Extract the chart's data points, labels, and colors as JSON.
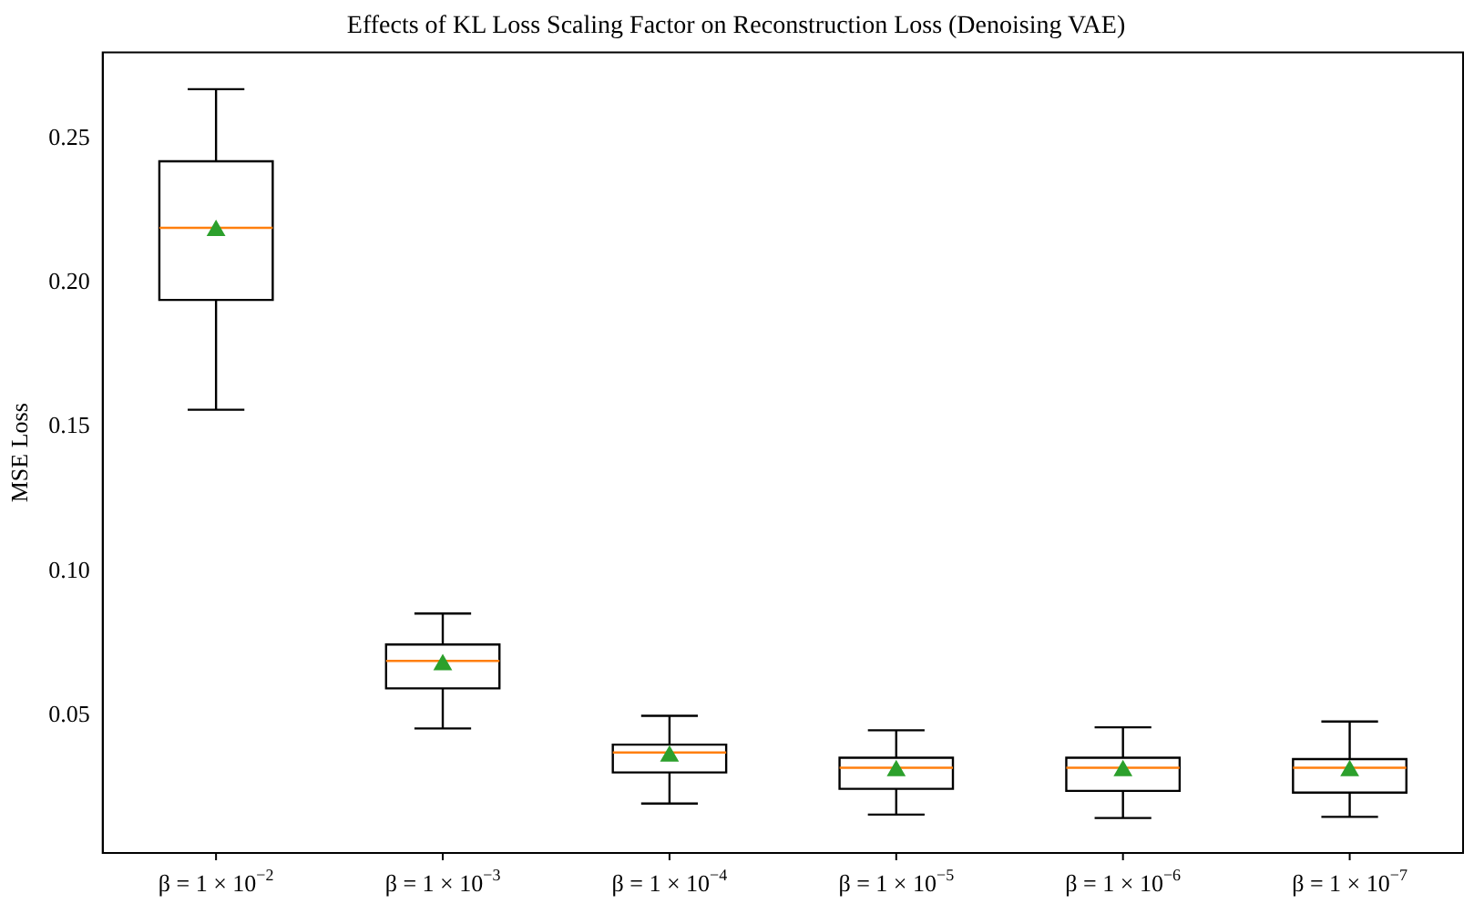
{
  "chart_data": {
    "type": "box",
    "title": "Effects of KL Loss Scaling Factor on Reconstruction Loss (Denoising VAE)",
    "ylabel": "MSE Loss",
    "categories": [
      "β = 1 × 10$^{−2}$",
      "β = 1 × 10$^{−3}$",
      "β = 1 × 10$^{−4}$",
      "β = 1 × 10$^{−5}$",
      "β = 1 × 10$^{−6}$",
      "β = 1 × 10$^{−7}$"
    ],
    "boxes": [
      {
        "low": 0.156,
        "q1": 0.194,
        "median": 0.219,
        "q3": 0.242,
        "high": 0.267,
        "mean": 0.218
      },
      {
        "low": 0.0456,
        "q1": 0.0595,
        "median": 0.069,
        "q3": 0.0747,
        "high": 0.0854,
        "mean": 0.0677
      },
      {
        "low": 0.0196,
        "q1": 0.0304,
        "median": 0.0373,
        "q3": 0.04,
        "high": 0.05,
        "mean": 0.036
      },
      {
        "low": 0.0158,
        "q1": 0.0247,
        "median": 0.032,
        "q3": 0.0355,
        "high": 0.045,
        "mean": 0.031
      },
      {
        "low": 0.0146,
        "q1": 0.024,
        "median": 0.032,
        "q3": 0.0355,
        "high": 0.046,
        "mean": 0.031
      },
      {
        "low": 0.015,
        "q1": 0.0234,
        "median": 0.032,
        "q3": 0.035,
        "high": 0.048,
        "mean": 0.031
      }
    ],
    "color": "#000000",
    "marker": "triangle",
    "ylim": [
      0.0025,
      0.2797
    ],
    "yticks": [
      0.05,
      {
        "value": 0.1,
        "label": "0.10"
      },
      0.15,
      {
        "value": 0.2,
        "label": "0.20"
      },
      0.25
    ],
    "grid": false,
    "legend": false
  }
}
